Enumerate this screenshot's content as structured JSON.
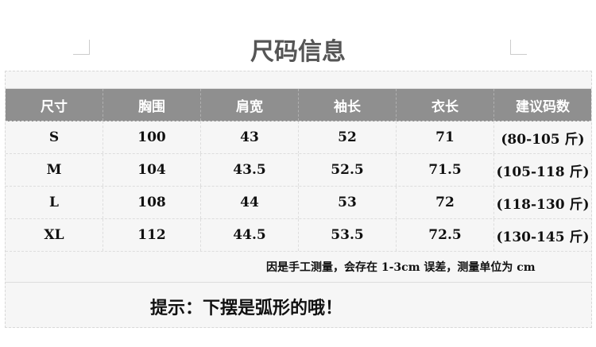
{
  "title": "尺码信息",
  "table": {
    "headers": [
      "尺寸",
      "胸围",
      "肩宽",
      "袖长",
      "衣长",
      "建议码数"
    ],
    "rows": [
      [
        "S",
        "100",
        "43",
        "52",
        "71",
        "(80-105 斤)"
      ],
      [
        "M",
        "104",
        "43.5",
        "52.5",
        "71.5",
        "(105-118 斤)"
      ],
      [
        "L",
        "108",
        "44",
        "53",
        "72",
        "(118-130 斤)"
      ],
      [
        "XL",
        "112",
        "44.5",
        "53.5",
        "72.5",
        "(130-145 斤)"
      ]
    ]
  },
  "note": "因是手工测量，会存在 1-3cm 误差，测量单位为 cm",
  "tip": "提示：下摆是弧形的哦！"
}
